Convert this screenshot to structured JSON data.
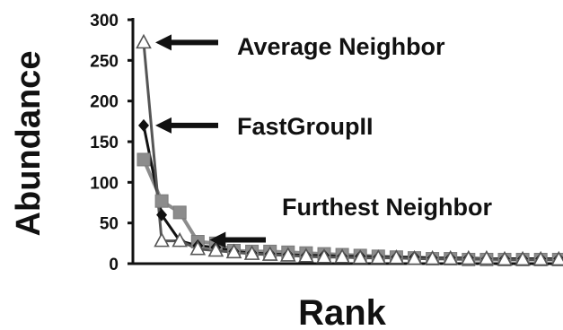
{
  "chart_data": {
    "type": "line",
    "xlabel": "Rank",
    "ylabel": "Abundance",
    "ylim": [
      0,
      300
    ],
    "y_ticks": [
      0,
      50,
      100,
      150,
      200,
      250,
      300
    ],
    "x": [
      1,
      2,
      3,
      4,
      5,
      6,
      7,
      8,
      9,
      10,
      11,
      12,
      13,
      14,
      15,
      16,
      17,
      18,
      19,
      20,
      21,
      22,
      23,
      24
    ],
    "x_tick_labels_shown": false,
    "grid": false,
    "legend": "none (series identified by arrow annotations)",
    "series": [
      {
        "name": "Average Neighbor",
        "marker": "open-triangle",
        "color": "#555555",
        "values": [
          272,
          28,
          28,
          18,
          16,
          14,
          12,
          11,
          10,
          9,
          8,
          8,
          7,
          7,
          7,
          6,
          6,
          6,
          6,
          6,
          5,
          5,
          5,
          5
        ]
      },
      {
        "name": "FastGroupII",
        "marker": "filled-diamond",
        "color": "#111111",
        "values": [
          170,
          60,
          28,
          22,
          20,
          15,
          13,
          12,
          11,
          10,
          10,
          9,
          9,
          8,
          8,
          8,
          7,
          7,
          7,
          6,
          6,
          6,
          6,
          6
        ]
      },
      {
        "name": "Furthest Neighbor",
        "marker": "filled-square",
        "color": "#8c8c8c",
        "values": [
          128,
          77,
          63,
          27,
          25,
          16,
          15,
          15,
          14,
          13,
          12,
          11,
          10,
          9,
          8,
          7,
          6,
          6,
          5,
          5,
          5,
          5,
          5,
          5
        ]
      }
    ],
    "annotations": [
      {
        "text": "Average Neighbor",
        "points_to_series": "Average Neighbor",
        "points_to_x": 1
      },
      {
        "text": "FastGroupII",
        "points_to_series": "FastGroupII",
        "points_to_x": 1
      },
      {
        "text": "Furthest Neighbor",
        "points_to_series": "Furthest Neighbor",
        "points_to_x": 4
      }
    ]
  }
}
